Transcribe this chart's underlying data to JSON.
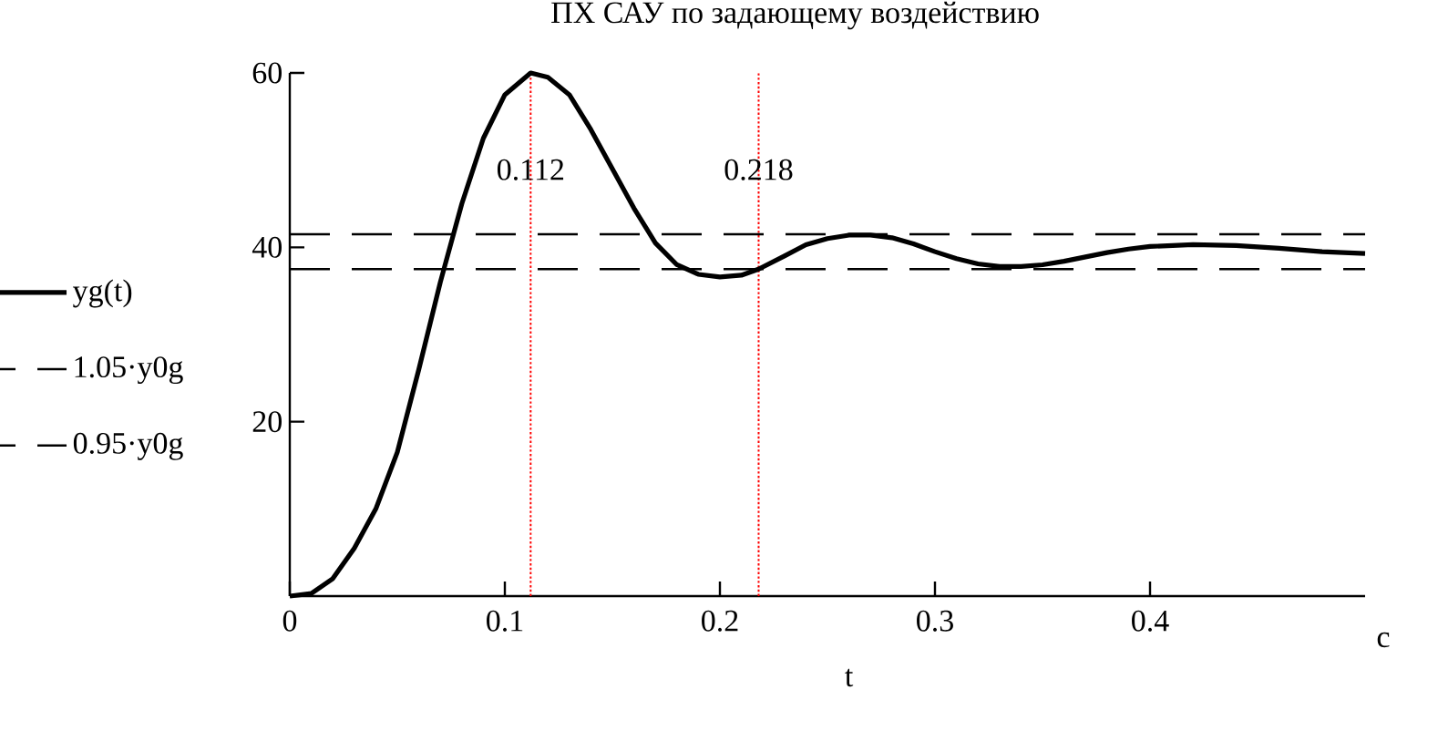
{
  "chart_data": {
    "type": "line",
    "title": "ПХ САУ по задающему воздействию",
    "xlabel": "t",
    "annotations": [
      "c"
    ],
    "xlim": [
      0,
      0.5
    ],
    "ylim": [
      0,
      60
    ],
    "xticks": [
      0,
      0.1,
      0.2,
      0.3,
      0.4
    ],
    "yticks": [
      20,
      40,
      60
    ],
    "grid": false,
    "legend": "left",
    "series": [
      {
        "name": "yg(t)",
        "color": "#000000",
        "line_style": "solid",
        "x": [
          0,
          0.01,
          0.02,
          0.03,
          0.04,
          0.05,
          0.06,
          0.07,
          0.08,
          0.09,
          0.1,
          0.112,
          0.12,
          0.13,
          0.14,
          0.15,
          0.16,
          0.17,
          0.18,
          0.19,
          0.2,
          0.21,
          0.218,
          0.23,
          0.24,
          0.25,
          0.26,
          0.27,
          0.28,
          0.29,
          0.3,
          0.31,
          0.32,
          0.33,
          0.34,
          0.35,
          0.36,
          0.37,
          0.38,
          0.39,
          0.4,
          0.42,
          0.44,
          0.46,
          0.48,
          0.5
        ],
        "values": [
          0,
          0.3,
          2,
          5.5,
          10,
          16.5,
          26,
          36,
          45,
          52.5,
          57.5,
          60,
          59.5,
          57.5,
          53.5,
          49,
          44.5,
          40.5,
          38,
          36.9,
          36.6,
          36.8,
          37.5,
          39,
          40.3,
          41,
          41.4,
          41.4,
          41.1,
          40.4,
          39.5,
          38.7,
          38.1,
          37.8,
          37.8,
          38,
          38.4,
          38.9,
          39.4,
          39.8,
          40.1,
          40.3,
          40.2,
          39.9,
          39.5,
          39.3
        ]
      },
      {
        "name": "1.05·y0g",
        "color": "#000000",
        "line_style": "dashed",
        "x": [
          0,
          0.5
        ],
        "values": [
          41.5,
          41.5
        ]
      },
      {
        "name": "0.95·y0g",
        "color": "#000000",
        "line_style": "dashed",
        "x": [
          0,
          0.5
        ],
        "values": [
          37.5,
          37.5
        ]
      }
    ],
    "ref_lines": [
      {
        "axis": "x",
        "value": 0.112,
        "label": "0.112",
        "color": "#ff0000",
        "line_style": "dotted"
      },
      {
        "axis": "x",
        "value": 0.218,
        "label": "0.218",
        "color": "#ff0000",
        "line_style": "dotted"
      }
    ]
  }
}
